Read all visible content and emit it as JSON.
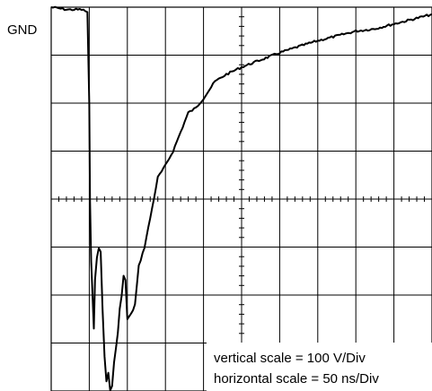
{
  "chart_data": {
    "type": "line",
    "reference_label": "GND",
    "annotations": {
      "vertical_scale": "vertical scale = 100 V/Div",
      "horizontal_scale": "horizontal scale = 50 ns/Div"
    },
    "xlim": [
      0,
      10
    ],
    "ylim": [
      -8,
      0
    ],
    "x_unit": "div (50 ns/Div)",
    "y_unit": "div (100 V/Div)",
    "grid": true,
    "divisions": {
      "x": 10,
      "y": 8
    },
    "colors": {
      "trace": "#000000",
      "grid": "#000000",
      "background": "#ffffff"
    },
    "series": [
      {
        "x": [
          0,
          0.4,
          0.8,
          0.95,
          1.0,
          1.02,
          1.05,
          1.08,
          1.12,
          1.15,
          1.2,
          1.25,
          1.3,
          1.35,
          1.4,
          1.45,
          1.5,
          1.55,
          1.6,
          1.65,
          1.7,
          1.75,
          1.8,
          1.85,
          1.9,
          1.95,
          2.0,
          2.1,
          2.2,
          2.3,
          2.45,
          2.6,
          2.8,
          3.0,
          3.2,
          3.4,
          3.6,
          3.8,
          4.0,
          4.3,
          4.6,
          5.0,
          5.5,
          6.0,
          6.5,
          7.0,
          7.5,
          8.0,
          8.5,
          9.0,
          9.5,
          10.0
        ],
        "y": [
          0.0,
          -0.05,
          -0.05,
          -0.1,
          -2.0,
          -4.0,
          -5.3,
          -5.9,
          -6.7,
          -5.7,
          -5.2,
          -5.0,
          -5.1,
          -6.3,
          -7.3,
          -7.8,
          -7.6,
          -8.0,
          -7.9,
          -7.4,
          -7.1,
          -6.8,
          -6.3,
          -6.0,
          -5.6,
          -5.7,
          -6.5,
          -6.4,
          -6.2,
          -5.4,
          -5.0,
          -4.4,
          -3.55,
          -3.3,
          -3.0,
          -2.6,
          -2.2,
          -2.1,
          -1.9,
          -1.55,
          -1.4,
          -1.25,
          -1.1,
          -0.95,
          -0.82,
          -0.7,
          -0.6,
          -0.5,
          -0.45,
          -0.35,
          -0.25,
          -0.15
        ]
      }
    ]
  }
}
